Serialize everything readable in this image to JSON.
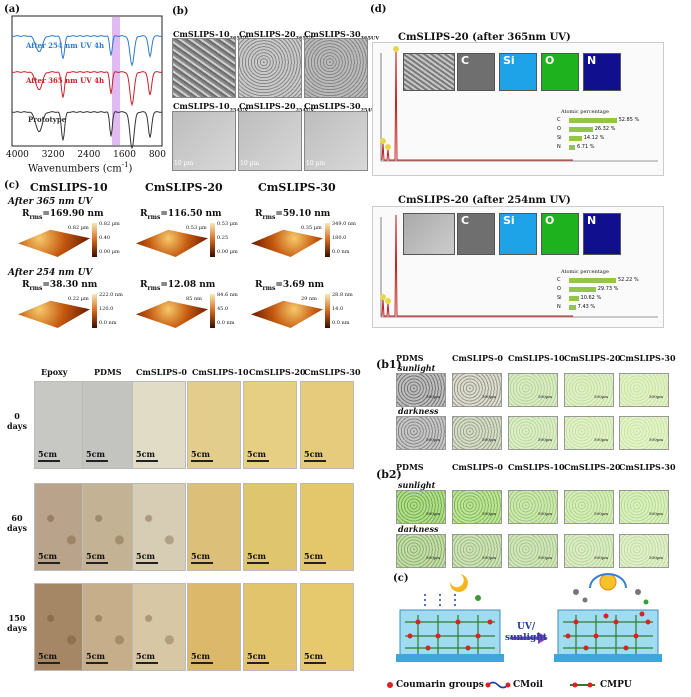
{
  "panel_a": {
    "label": "(a)",
    "xlabel": "Wavenumbers (cm",
    "xlabel_sup": "-1",
    "xlabel_end": ")",
    "ticks": [
      "4000",
      "3200",
      "2400",
      "1600",
      "800"
    ],
    "series": [
      {
        "name": "After 254 nm UV 4h",
        "color": "#2b7bd0"
      },
      {
        "name": "After 365 nm UV 4h",
        "color": "#c8222a"
      },
      {
        "name": "Prototype",
        "color": "#333333"
      }
    ]
  },
  "panel_b": {
    "label": "(b)",
    "top_titles": [
      "CmSLIPS-10",
      "CmSLIPS-20",
      "CmSLIPS-30"
    ],
    "top_sub": "365UV",
    "bottom_titles": [
      "CmSLIPS-10",
      "CmSLIPS-20",
      "CmSLIPS-30"
    ],
    "bottom_sub": "254UV",
    "scale": "10 µm"
  },
  "panel_c": {
    "label": "(c)",
    "columns": [
      "CmSLIPS-10",
      "CmSLIPS-20",
      "CmSLIPS-30"
    ],
    "row1_title": "After 365 nm UV",
    "row2_title": "After 254 nm UV",
    "rms_prefix": "R",
    "rms_sub": "rms",
    "row1_rms": [
      "=169.90 nm",
      "=116.50 nm",
      "=59.10 nm"
    ],
    "row2_rms": [
      "=38.30 nm",
      "=12.08 nm",
      "=3.69 nm"
    ],
    "row1_scales": [
      {
        "top": "0.82 µm",
        "mid": "0.40",
        "bot": "0.00 µm",
        "z": "0.82 µm"
      },
      {
        "top": "0.53 µm",
        "mid": "0.25",
        "bot": "0.00 µm",
        "z": "0.53 µm"
      },
      {
        "top": "349.0 nm",
        "mid": "180.0",
        "bot": "0.0 nm",
        "z": "0.35 µm"
      }
    ],
    "row2_scales": [
      {
        "top": "222.0 nm",
        "mid": "120.0",
        "bot": "0.0 nm",
        "z": "0.22 µm"
      },
      {
        "top": "84.6 nm",
        "mid": "45.0",
        "bot": "0.0 nm",
        "z": "85 nm"
      },
      {
        "top": "28.8 nm",
        "mid": "14.0",
        "bot": "0.0 nm",
        "z": "29 nm"
      }
    ]
  },
  "panel_d": {
    "label": "(d)",
    "title_top": "CmSLIPS-20 (after 365nm UV)",
    "title_bottom": "CmSLIPS-20 (after 254nm UV)",
    "elements": [
      "C",
      "Si",
      "O",
      "N"
    ],
    "atomic_title": "Atomic percentage",
    "top_pct": [
      "52.85 %",
      "26.32 %",
      "14.12 %",
      "6.71 %"
    ],
    "top_pct_values": [
      52.85,
      26.32,
      14.12,
      6.71
    ],
    "bottom_pct": [
      "52.22 %",
      "29.73 %",
      "10.62 %",
      "7.43 %"
    ],
    "bottom_pct_values": [
      52.22,
      29.73,
      10.62,
      7.43
    ],
    "peak_labels": [
      "O",
      "C",
      "Si",
      "N"
    ],
    "map_scale": "10µm",
    "axis_ticks": [
      "0",
      "1",
      "2",
      "3",
      "4",
      "5",
      "6",
      "7",
      "8",
      "9",
      "10",
      "11",
      "12",
      "13",
      "14",
      "15",
      "16",
      "17",
      "18",
      "19",
      "20"
    ]
  },
  "panel_photos": {
    "columns": [
      "Epoxy",
      "PDMS",
      "CmSLIPS-0",
      "CmSLIPS-10",
      "CmSLIPS-20",
      "CmSLIPS-30"
    ],
    "rows": [
      {
        "n": "0",
        "unit": "days"
      },
      {
        "n": "60",
        "unit": "days"
      },
      {
        "n": "150",
        "unit": "days"
      }
    ],
    "scale": "5cm"
  },
  "panel_b1": {
    "label": "(b1)",
    "columns": [
      "PDMS",
      "CmSLIPS-0",
      "CmSLIPS-10",
      "CmSLIPS-20",
      "CmSLIPS-30"
    ],
    "row1": "sunlight",
    "row2": "darkness",
    "scale": "500µm"
  },
  "panel_b2": {
    "label": "(b2)",
    "columns": [
      "PDMS",
      "CmSLIPS-0",
      "CmSLIPS-10",
      "CmSLIPS-20",
      "CmSLIPS-30"
    ],
    "row1": "sunlight",
    "row2": "darkness"
  },
  "panel_c2": {
    "label": "(c)",
    "arrow_line1": "UV/",
    "arrow_line2": "sunlight",
    "legend": [
      "Coumarin groups",
      "CMoil",
      "CMPU"
    ]
  }
}
